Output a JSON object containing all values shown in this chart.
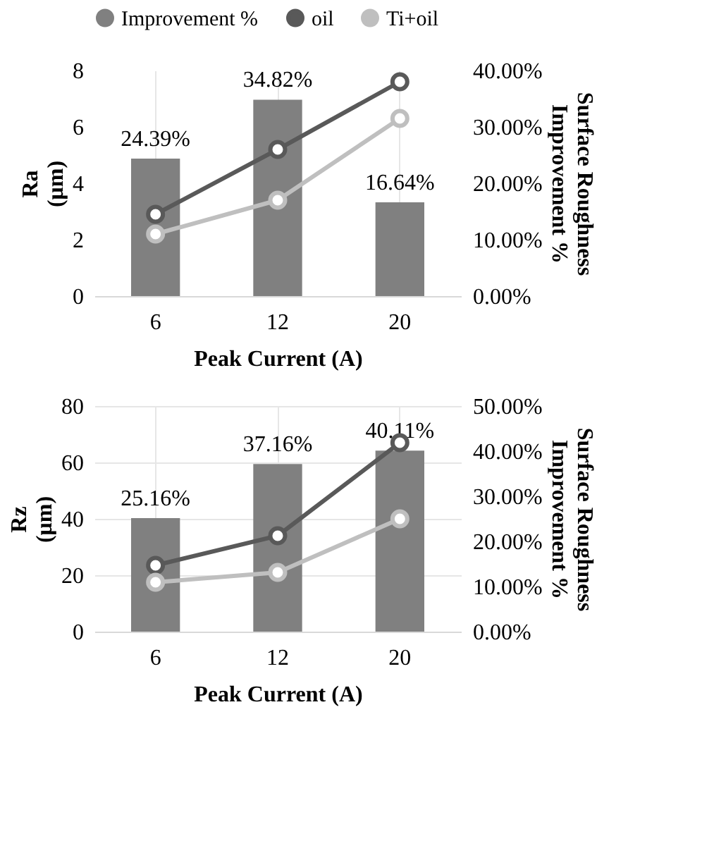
{
  "chart_data": [
    {
      "type": "bar",
      "categories": [
        "6",
        "12",
        "20"
      ],
      "xlabel": "Peak Current (A)",
      "ylabel": "Ra (μm)",
      "y2label": "Surface Roughness Improvement %",
      "ylim": [
        0,
        8
      ],
      "yticks": [
        0,
        2,
        4,
        6,
        8
      ],
      "y2lim": [
        0,
        40
      ],
      "y2ticks": [
        {
          "value": 0,
          "label": "0.00%"
        },
        {
          "value": 10,
          "label": "10.00%"
        },
        {
          "value": 20,
          "label": "20.00%"
        },
        {
          "value": 30,
          "label": "30.00%"
        },
        {
          "value": 40,
          "label": "40.00%"
        }
      ],
      "grid": "x",
      "legend": "top",
      "marker": "circle",
      "line_style": "solid",
      "series": [
        {
          "name": "Improvement %",
          "axis": "y2",
          "color": "#808080",
          "values": [
            24.39,
            34.82,
            16.64
          ],
          "value_labels": [
            "24.39%",
            "34.82%",
            "16.64%"
          ]
        },
        {
          "name": "oil",
          "type": "line",
          "color": "#595959",
          "values": [
            2.9,
            5.2,
            7.6
          ]
        },
        {
          "name": "Ti+oil",
          "type": "line",
          "color": "#bfbfbf",
          "values": [
            2.2,
            3.4,
            6.3
          ]
        }
      ]
    },
    {
      "type": "bar",
      "categories": [
        "6",
        "12",
        "20"
      ],
      "xlabel": "Peak Current (A)",
      "ylabel": "Rz (μm)",
      "y2label": "Surface Roughness Improvement %",
      "ylim": [
        0,
        80
      ],
      "yticks": [
        0,
        20,
        40,
        60,
        80
      ],
      "y2lim": [
        0,
        50
      ],
      "y2ticks": [
        {
          "value": 0,
          "label": "0.00%"
        },
        {
          "value": 10,
          "label": "10.00%"
        },
        {
          "value": 20,
          "label": "20.00%"
        },
        {
          "value": 30,
          "label": "30.00%"
        },
        {
          "value": 40,
          "label": "40.00%"
        },
        {
          "value": 50,
          "label": "50.00%"
        }
      ],
      "grid": true,
      "legend": false,
      "marker": "circle",
      "line_style": "solid",
      "series": [
        {
          "axis": "y2",
          "color": "#808080",
          "values": [
            25.16,
            37.16,
            40.11
          ],
          "value_labels": [
            "25.16%",
            "37.16%",
            "40.11%"
          ]
        },
        {
          "type": "line",
          "color": "#595959",
          "values": [
            23.5,
            34,
            67
          ]
        },
        {
          "type": "line",
          "color": "#bfbfbf",
          "values": [
            17.5,
            21,
            40
          ]
        }
      ]
    }
  ]
}
